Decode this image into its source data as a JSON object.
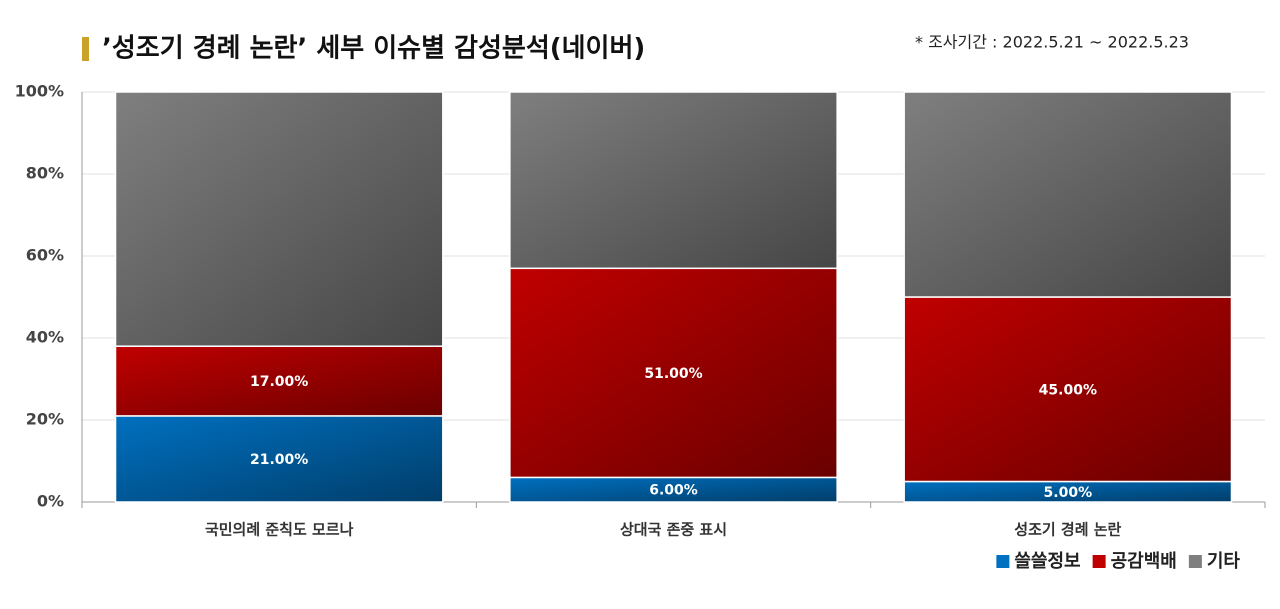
{
  "chart_data": {
    "type": "stacked-bar",
    "title": "’성조기 경례 논란’ 세부 이슈별 감성분석(네이버)",
    "subtitle": "* 조사기간 : 2022.5.21 ~ 2022.5.23",
    "categories": [
      "국민의례 준칙도 모르나",
      "상대국 존중 표시",
      "성조기 경례 논란"
    ],
    "series": [
      {
        "name": "쓸쓸정보",
        "color": "#0070c0",
        "values": [
          21,
          6,
          5
        ],
        "value_labels": [
          "21.00%",
          "6.00%",
          "5.00%"
        ]
      },
      {
        "name": "공감백배",
        "color": "#c00000",
        "values": [
          17,
          51,
          45
        ],
        "value_labels": [
          "17.00%",
          "51.00%",
          "45.00%"
        ]
      },
      {
        "name": "기타",
        "color": "#7f7f7f",
        "values": [
          62,
          43,
          50
        ]
      }
    ],
    "ylim": [
      0,
      100
    ],
    "yticks": [
      {
        "value": 0,
        "label": "0%"
      },
      {
        "value": 20,
        "label": "20%"
      },
      {
        "value": 40,
        "label": "40%"
      },
      {
        "value": 60,
        "label": "60%"
      },
      {
        "value": 80,
        "label": "80%"
      },
      {
        "value": 100,
        "label": "100%"
      }
    ],
    "grid": true,
    "legend": "bottom-right"
  }
}
